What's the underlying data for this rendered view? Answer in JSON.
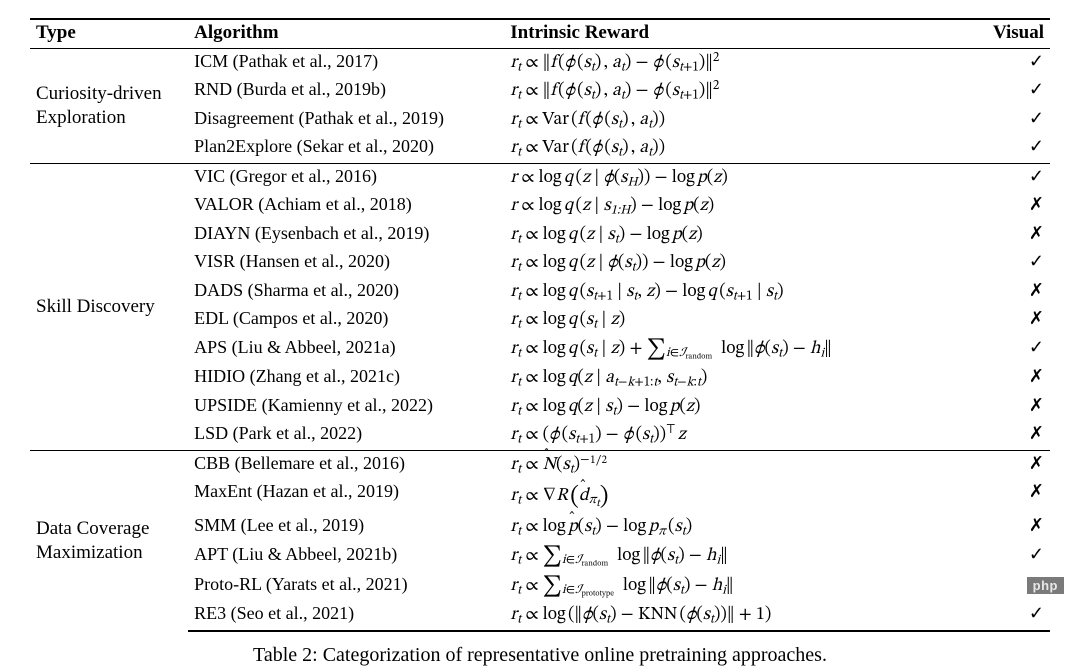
{
  "headers": {
    "type": "Type",
    "algorithm": "Algorithm",
    "reward": "Intrinsic Reward",
    "visual": "Visual"
  },
  "caption": "Table 2:  Categorization of representative online pretraining approaches.",
  "watermark": "php",
  "glyph": {
    "check": "✓",
    "cross": "✗"
  },
  "sections": [
    {
      "type": "Curiosity-driven Exploration",
      "rows": [
        {
          "algo": "ICM (Pathak et al., 2017)",
          "reward": "<span class='math'>r<span class='sub'>t</span> <span class='rm'>∝</span> <span class='norm'>‖</span>f<span class='rm'>&thinsp;(</span>ϕ<span class='rm'>&thinsp;(</span>s<span class='sub'>t</span><span class='rm'>)&thinsp;,</span> a<span class='sub'>t</span><span class='rm'>)</span> <span class='rm'>−</span> ϕ<span class='rm'>&thinsp;(</span>s<span class='sub'>t<span class='rm'>+1</span></span><span class='rm'>)</span><span class='norm'>‖</span><span class='sup rm'>2</span></span>",
          "visual": "check"
        },
        {
          "algo": "RND (Burda et al., 2019b)",
          "reward": "<span class='math'>r<span class='sub'>t</span> <span class='rm'>∝</span> <span class='norm'>‖</span>f<span class='rm'>&thinsp;(</span>ϕ<span class='rm'>&thinsp;(</span>s<span class='sub'>t</span><span class='rm'>)&thinsp;,</span> a<span class='sub'>t</span><span class='rm'>)</span> <span class='rm'>−</span> ϕ<span class='rm'>&thinsp;(</span>s<span class='sub'>t<span class='rm'>+1</span></span><span class='rm'>)</span><span class='norm'>‖</span><span class='sup rm'>2</span></span>",
          "visual": "check"
        },
        {
          "algo": "Disagreement (Pathak et al., 2019)",
          "reward": "<span class='math'>r<span class='sub'>t</span> <span class='rm'>∝ Var&thinsp;(</span>f<span class='rm'>&thinsp;(</span>ϕ<span class='rm'>&thinsp;(</span>s<span class='sub'>t</span><span class='rm'>)&thinsp;,</span> a<span class='sub'>t</span><span class='rm'>))</span></span>",
          "visual": "check"
        },
        {
          "algo": "Plan2Explore (Sekar et al., 2020)",
          "reward": "<span class='math'>r<span class='sub'>t</span> <span class='rm'>∝ Var&thinsp;(</span>f<span class='rm'>&thinsp;(</span>ϕ<span class='rm'>&thinsp;(</span>s<span class='sub'>t</span><span class='rm'>)&thinsp;,</span> a<span class='sub'>t</span><span class='rm'>))</span></span>",
          "visual": "check"
        }
      ]
    },
    {
      "type": "Skill Discovery",
      "rows": [
        {
          "algo": "VIC (Gregor et al., 2016)",
          "reward": "<span class='math'>r <span class='rm'>∝ log</span>&thinsp;q<span class='rm'>&thinsp;(</span>z <span class='rm'>|</span> ϕ<span class='rm'>(</span>s<span class='sub'>H</span><span class='rm'>))</span> <span class='rm'>− log</span>&thinsp;p<span class='rm'>(</span>z<span class='rm'>)</span></span>",
          "visual": "check"
        },
        {
          "algo": "VALOR (Achiam et al., 2018)",
          "reward": "<span class='math'>r <span class='rm'>∝ log</span>&thinsp;q<span class='rm'>&thinsp;(</span>z <span class='rm'>|</span> s<span class='sub rm'>1:<span style='font-style:italic'>H</span></span><span class='rm'>)</span> <span class='rm'>− log</span>&thinsp;p<span class='rm'>(</span>z<span class='rm'>)</span></span>",
          "visual": "cross"
        },
        {
          "algo": "DIAYN (Eysenbach et al., 2019)",
          "reward": "<span class='math'>r<span class='sub'>t</span> <span class='rm'>∝ log</span>&thinsp;q<span class='rm'>&thinsp;(</span>z <span class='rm'>|</span> s<span class='sub'>t</span><span class='rm'>)</span> <span class='rm'>− log</span>&thinsp;p<span class='rm'>(</span>z<span class='rm'>)</span></span>",
          "visual": "cross"
        },
        {
          "algo": "VISR (Hansen et al., 2020)",
          "reward": "<span class='math'>r<span class='sub'>t</span> <span class='rm'>∝ log</span>&thinsp;q<span class='rm'>&thinsp;(</span>z <span class='rm'>|</span> ϕ<span class='rm'>(</span>s<span class='sub'>t</span><span class='rm'>))</span> <span class='rm'>− log</span>&thinsp;p<span class='rm'>(</span>z<span class='rm'>)</span></span>",
          "visual": "check"
        },
        {
          "algo": "DADS (Sharma et al., 2020)",
          "reward": "<span class='math'>r<span class='sub'>t</span> <span class='rm'>∝ log</span>&thinsp;q<span class='rm'>&thinsp;(</span>s<span class='sub'>t<span class='rm'>+1</span></span> <span class='rm'>|</span> s<span class='sub'>t</span><span class='rm'>,</span> z<span class='rm'>)</span> <span class='rm'>− log</span>&thinsp;q<span class='rm'>&thinsp;(</span>s<span class='sub'>t<span class='rm'>+1</span></span> <span class='rm'>|</span> s<span class='sub'>t</span><span class='rm'>)</span></span>",
          "visual": "cross"
        },
        {
          "algo": "EDL (Campos et al., 2020)",
          "reward": "<span class='math'>r<span class='sub'>t</span> <span class='rm'>∝ log</span>&thinsp;q<span class='rm'>&thinsp;(</span>s<span class='sub'>t</span> <span class='rm'>|</span> z<span class='rm'>)</span></span>",
          "visual": "cross"
        },
        {
          "algo": "APS (Liu & Abbeel, 2021a)",
          "reward": "<span class='math'>r<span class='sub'>t</span> <span class='rm'>∝ log</span>&thinsp;q<span class='rm'>&thinsp;(</span>s<span class='sub'>t</span> <span class='rm'>|</span> z<span class='rm'>)</span> <span class='rm'>+</span> <span class='bigop'>∑</span><span class='sub'>i<span class='rm'>∈</span>ℐ<span class='ssub'>random</span></span>&ensp;<span class='rm'>log</span>&thinsp;<span class='norm'>‖</span>ϕ<span class='rm'>(</span>s<span class='sub'>t</span><span class='rm'>)</span> <span class='rm'>−</span> h<span class='sub'>i</span><span class='norm'>‖</span></span>",
          "visual": "check"
        },
        {
          "algo": "HIDIO (Zhang et al., 2021c)",
          "reward": "<span class='math'>r<span class='sub'>t</span> <span class='rm'>∝ log</span>&thinsp;q<span class='rm'>(</span>z <span class='rm'>|</span> a<span class='sub'>t<span class='rm'>−</span>k<span class='rm'>+1:</span>t</span><span class='rm'>,</span> s<span class='sub'>t<span class='rm'>−</span>k<span class='rm'>:</span>t</span><span class='rm'>)</span></span>",
          "visual": "cross"
        },
        {
          "algo": "UPSIDE (Kamienny et al., 2022)",
          "reward": "<span class='math'>r<span class='sub'>t</span> <span class='rm'>∝ log</span>&thinsp;q<span class='rm'>(</span>z <span class='rm'>|</span> s<span class='sub'>t</span><span class='rm'>)</span> <span class='rm'>− log</span>&thinsp;p<span class='rm'>(</span>z<span class='rm'>)</span></span>",
          "visual": "cross"
        },
        {
          "algo": "LSD (Park et al., 2022)",
          "reward": "<span class='math'>r<span class='sub'>t</span> <span class='rm'>∝ (</span>ϕ<span class='rm'>&thinsp;(</span>s<span class='sub'>t<span class='rm'>+1</span></span><span class='rm'>)</span> <span class='rm'>−</span> ϕ<span class='rm'>&thinsp;(</span>s<span class='sub'>t</span><span class='rm'>))</span><span class='sup rm'>⊤</span>&thinsp;z</span>",
          "visual": "cross"
        }
      ]
    },
    {
      "type": "Data Coverage Maximization",
      "rows": [
        {
          "algo": "CBB (Bellemare et al., 2016)",
          "reward": "<span class='math'>r<span class='sub'>t</span> <span class='rm'>∝</span> <span class='hat'>N</span><span class='rm'>(</span>s<span class='sub'>t</span><span class='rm'>)</span><span class='sup rm'>−<span style='font-size:0.85em'>&#8202;1&#8725;2</span></span></span>",
          "visual": "cross"
        },
        {
          "algo": "MaxEnt (Hazan et al., 2019)",
          "reward": "<span class='math'>r<span class='sub'>t</span> <span class='rm'>∝ ∇</span>R&thinsp;<span class='paren-big'>(</span><span class='hat'>d</span><span class='sub'>π<span class='sub' style='font-size:0.85em'>t</span></span><span class='paren-big'>)</span></span>",
          "visual": "cross"
        },
        {
          "algo": "SMM (Lee et al., 2019)",
          "reward": "<span class='math'>r<span class='sub'>t</span> <span class='rm'>∝ log</span>&thinsp;<span class='hat'>p</span><span class='rm'>(</span>s<span class='sub'>t</span><span class='rm'>)</span> <span class='rm'>− log</span>&thinsp;p<span class='sub'>π</span><span class='rm'>&thinsp;(</span>s<span class='sub'>t</span><span class='rm'>)</span></span>",
          "visual": "cross"
        },
        {
          "algo": "APT (Liu & Abbeel, 2021b)",
          "reward": "<span class='math'>r<span class='sub'>t</span> <span class='rm'>∝</span> <span class='bigop'>∑</span><span class='sub'>i<span class='rm'>∈</span>ℐ<span class='ssub'>random</span></span>&ensp;<span class='rm'>log</span>&thinsp;<span class='norm'>‖</span>ϕ<span class='rm'>(</span>s<span class='sub'>t</span><span class='rm'>)</span> <span class='rm'>−</span> h<span class='sub'>i</span><span class='norm'>‖</span></span>",
          "visual": "check"
        },
        {
          "algo": "Proto-RL (Yarats et al., 2021)",
          "reward": "<span class='math'>r<span class='sub'>t</span> <span class='rm'>∝</span> <span class='bigop'>∑</span><span class='sub'>i<span class='rm'>∈</span>ℐ<span class='ssub'>prototype</span></span>&ensp;<span class='rm'>log</span>&thinsp;<span class='norm'>‖</span>ϕ<span class='rm'>(</span>s<span class='sub'>t</span><span class='rm'>)</span> <span class='rm'>−</span> h<span class='sub'>i</span><span class='norm'>‖</span></span>",
          "visual": "check"
        },
        {
          "algo": "RE3 (Seo et al., 2021)",
          "reward": "<span class='math'>r<span class='sub'>t</span> <span class='rm'>∝ log&thinsp;(</span><span class='norm'>‖</span>ϕ<span class='rm'>(</span>s<span class='sub'>t</span><span class='rm'>)</span> <span class='rm'>− KNN&thinsp;(</span>ϕ<span class='rm'>(</span>s<span class='sub'>t</span><span class='rm'>))</span><span class='norm'>‖</span> <span class='rm'>+ 1)</span></span>",
          "visual": "check"
        }
      ]
    }
  ]
}
